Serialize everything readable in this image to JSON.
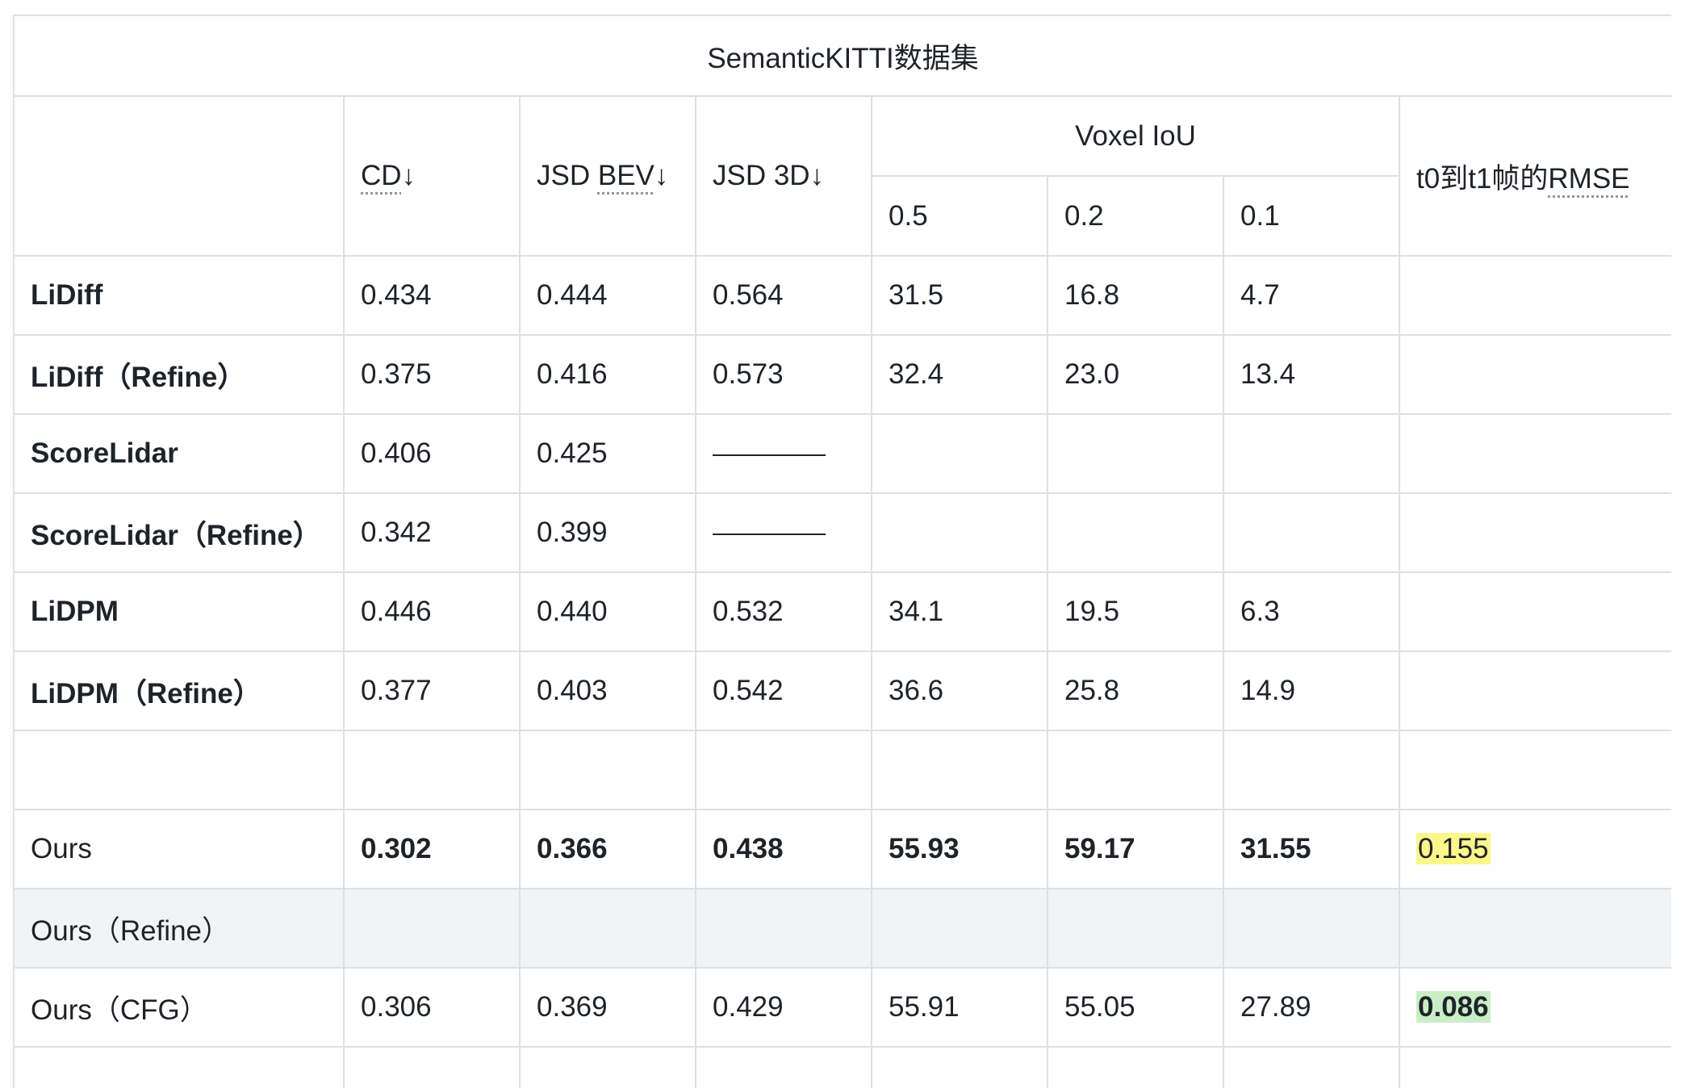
{
  "table": {
    "title": "SemanticKITTI数据集",
    "headers": {
      "cd": "CD",
      "cd_arrow": "↓",
      "jsd_bev_prefix": "JSD ",
      "jsd_bev": "BEV",
      "jsd_bev_arrow": "↓",
      "jsd_3d": "JSD 3D↓",
      "voxel_iou": "Voxel IoU",
      "iou_05": "0.5",
      "iou_02": "0.2",
      "iou_01": "0.1",
      "rmse_prefix": "t0到t1帧的",
      "rmse": "RMSE"
    },
    "rows": [
      {
        "label": "LiDiff",
        "cd": "0.434",
        "jsd_bev": "0.444",
        "jsd_3d": "0.564",
        "iou_05": "31.5",
        "iou_02": "16.8",
        "iou_01": "4.7",
        "rmse": ""
      },
      {
        "label": "LiDiff（Refine）",
        "cd": "0.375",
        "jsd_bev": "0.416",
        "jsd_3d": "0.573",
        "iou_05": "32.4",
        "iou_02": "23.0",
        "iou_01": "13.4",
        "rmse": ""
      },
      {
        "label": "ScoreLidar",
        "cd": "0.406",
        "jsd_bev": "0.425",
        "jsd_3d": "",
        "iou_05": "",
        "iou_02": "",
        "iou_01": "",
        "rmse": ""
      },
      {
        "label": "ScoreLidar（Refine）",
        "cd": "0.342",
        "jsd_bev": "0.399",
        "jsd_3d": "",
        "iou_05": "",
        "iou_02": "",
        "iou_01": "",
        "rmse": ""
      },
      {
        "label": "LiDPM",
        "cd": "0.446",
        "jsd_bev": "0.440",
        "jsd_3d": "0.532",
        "iou_05": "34.1",
        "iou_02": "19.5",
        "iou_01": "6.3",
        "rmse": ""
      },
      {
        "label": "LiDPM（Refine）",
        "cd": "0.377",
        "jsd_bev": "0.403",
        "jsd_3d": "0.542",
        "iou_05": "36.6",
        "iou_02": "25.8",
        "iou_01": "14.9",
        "rmse": ""
      },
      {
        "label": "",
        "cd": "",
        "jsd_bev": "",
        "jsd_3d": "",
        "iou_05": "",
        "iou_02": "",
        "iou_01": "",
        "rmse": ""
      },
      {
        "label": "Ours",
        "cd": "0.302",
        "jsd_bev": "0.366",
        "jsd_3d": "0.438",
        "iou_05": "55.93",
        "iou_02": "59.17",
        "iou_01": "31.55",
        "rmse": "0.155"
      },
      {
        "label": "Ours（Refine）",
        "cd": "",
        "jsd_bev": "",
        "jsd_3d": "",
        "iou_05": "",
        "iou_02": "",
        "iou_01": "",
        "rmse": ""
      },
      {
        "label": "Ours（CFG）",
        "cd": "0.306",
        "jsd_bev": "0.369",
        "jsd_3d": "0.429",
        "iou_05": "55.91",
        "iou_02": "55.05",
        "iou_01": "27.89",
        "rmse": "0.086"
      }
    ],
    "colors": {
      "border": "#dee0e3",
      "gray_row": "#f2f3f5",
      "highlight_yellow": "#fbf78a",
      "highlight_green": "#c9eec6"
    }
  }
}
